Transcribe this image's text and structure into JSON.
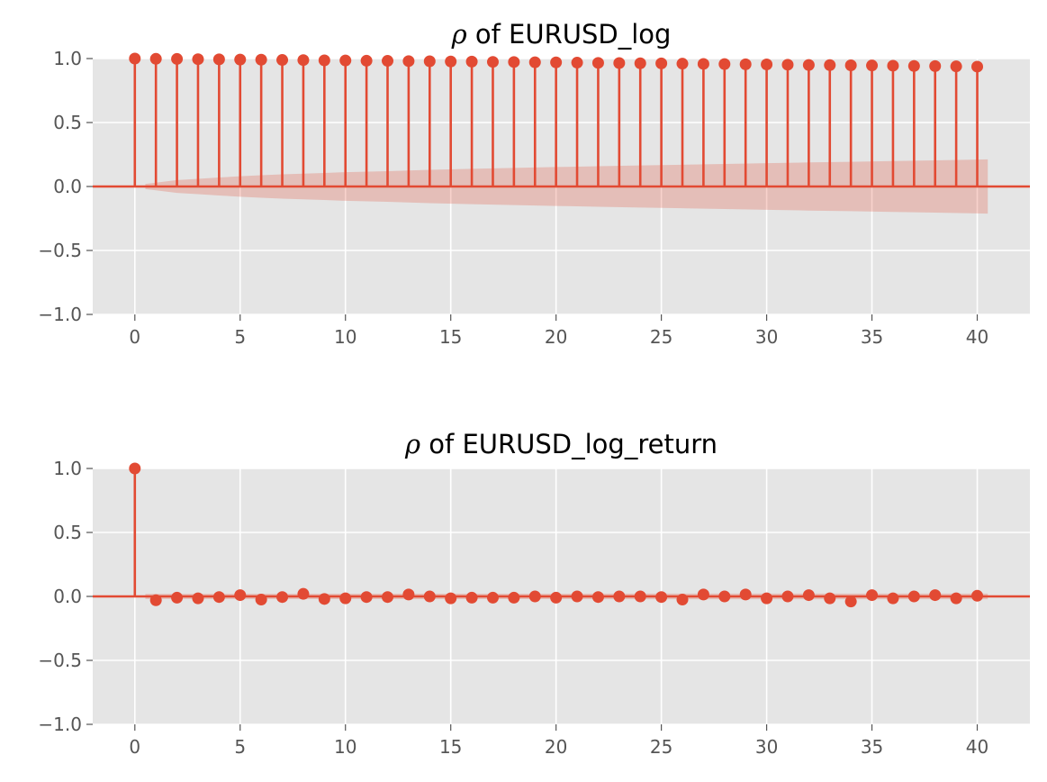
{
  "colors": {
    "accent": "#e24a33",
    "plot_background": "#e5e5e5",
    "grid": "#ffffff"
  },
  "chart_data": [
    {
      "type": "stem",
      "title_symbol": "ρ",
      "title_text": " of EURUSD_log",
      "xlabel": "",
      "ylabel": "",
      "xlim": [
        -2,
        42.5
      ],
      "ylim": [
        -1.0,
        1.0
      ],
      "xticks": [
        "0",
        "5",
        "10",
        "15",
        "20",
        "25",
        "30",
        "35",
        "40"
      ],
      "yticks": [
        "1.0",
        "0.5",
        "0.0",
        "−0.5",
        "−1.0"
      ],
      "grid": true,
      "lags": [
        0,
        1,
        2,
        3,
        4,
        5,
        6,
        7,
        8,
        9,
        10,
        11,
        12,
        13,
        14,
        15,
        16,
        17,
        18,
        19,
        20,
        21,
        22,
        23,
        24,
        25,
        26,
        27,
        28,
        29,
        30,
        31,
        32,
        33,
        34,
        35,
        36,
        37,
        38,
        39,
        40
      ],
      "values": [
        1.0,
        0.998,
        0.997,
        0.995,
        0.994,
        0.992,
        0.991,
        0.989,
        0.988,
        0.986,
        0.985,
        0.983,
        0.982,
        0.98,
        0.979,
        0.977,
        0.976,
        0.974,
        0.973,
        0.971,
        0.97,
        0.968,
        0.966,
        0.965,
        0.963,
        0.962,
        0.96,
        0.958,
        0.957,
        0.955,
        0.954,
        0.952,
        0.95,
        0.949,
        0.947,
        0.946,
        0.944,
        0.942,
        0.941,
        0.939,
        0.937
      ],
      "confidence_band": {
        "x": [
          0.5,
          1,
          2,
          3,
          4,
          5,
          6,
          7,
          8,
          9,
          10,
          12,
          14,
          16,
          18,
          20,
          22,
          24,
          26,
          28,
          30,
          32,
          34,
          36,
          38,
          40,
          40.5
        ],
        "upper": [
          0.02,
          0.03,
          0.05,
          0.06,
          0.07,
          0.08,
          0.088,
          0.095,
          0.1,
          0.106,
          0.112,
          0.12,
          0.13,
          0.138,
          0.145,
          0.152,
          0.158,
          0.165,
          0.17,
          0.176,
          0.182,
          0.188,
          0.193,
          0.199,
          0.204,
          0.21,
          0.212
        ]
      }
    },
    {
      "type": "stem",
      "title_symbol": "ρ",
      "title_text": " of EURUSD_log_return",
      "xlabel": "",
      "ylabel": "",
      "xlim": [
        -2,
        42.5
      ],
      "ylim": [
        -1.0,
        1.0
      ],
      "xticks": [
        "0",
        "5",
        "10",
        "15",
        "20",
        "25",
        "30",
        "35",
        "40"
      ],
      "yticks": [
        "1.0",
        "0.5",
        "0.0",
        "−0.5",
        "−1.0"
      ],
      "grid": true,
      "lags": [
        0,
        1,
        2,
        3,
        4,
        5,
        6,
        7,
        8,
        9,
        10,
        11,
        12,
        13,
        14,
        15,
        16,
        17,
        18,
        19,
        20,
        21,
        22,
        23,
        24,
        25,
        26,
        27,
        28,
        29,
        30,
        31,
        32,
        33,
        34,
        35,
        36,
        37,
        38,
        39,
        40
      ],
      "values": [
        1.0,
        -0.03,
        -0.01,
        -0.015,
        -0.005,
        0.01,
        -0.025,
        -0.005,
        0.02,
        -0.02,
        -0.015,
        -0.005,
        -0.005,
        0.015,
        0.0,
        -0.015,
        -0.01,
        -0.01,
        -0.01,
        0.0,
        -0.01,
        0.0,
        -0.005,
        0.0,
        0.0,
        -0.005,
        -0.025,
        0.015,
        0.0,
        0.015,
        -0.015,
        0.0,
        0.01,
        -0.015,
        -0.04,
        0.01,
        -0.015,
        0.0,
        0.01,
        -0.015,
        0.005
      ],
      "confidence_band": {
        "x": [
          0.5,
          1,
          5,
          10,
          15,
          20,
          25,
          30,
          35,
          40,
          40.5
        ],
        "upper": [
          0.02,
          0.02,
          0.02,
          0.021,
          0.021,
          0.021,
          0.022,
          0.022,
          0.022,
          0.022,
          0.022
        ]
      }
    }
  ]
}
